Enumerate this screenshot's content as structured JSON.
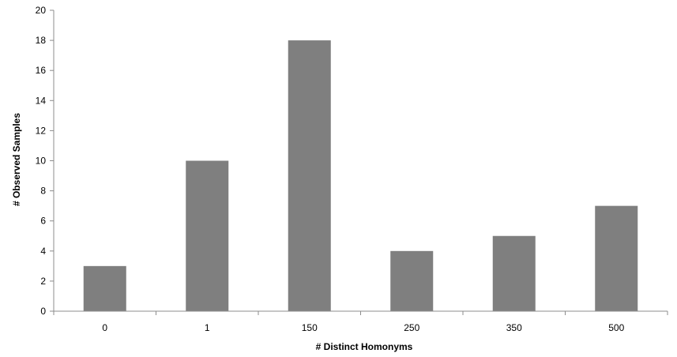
{
  "chart_data": {
    "type": "bar",
    "categories": [
      "0",
      "1",
      "150",
      "250",
      "350",
      "500"
    ],
    "values": [
      3,
      10,
      18,
      4,
      5,
      7
    ],
    "xlabel": "# Distinct Homonyms",
    "ylabel": "# Observed Samples",
    "ylim": [
      0,
      20
    ],
    "yticks": [
      0,
      2,
      4,
      6,
      8,
      10,
      12,
      14,
      16,
      18,
      20
    ],
    "grid": false,
    "legend": "none",
    "bar_color": "#7f7f7f"
  }
}
